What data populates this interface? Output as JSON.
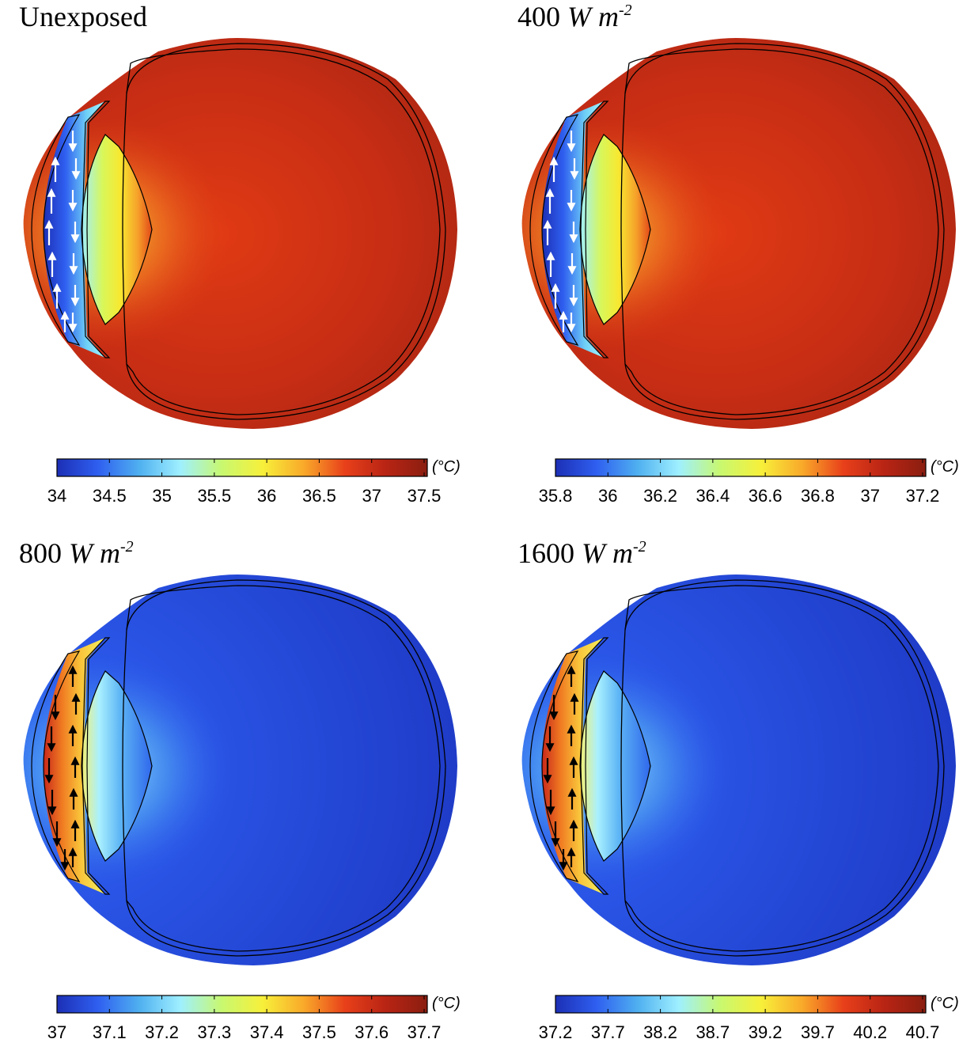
{
  "colors": {
    "scale": [
      "#1c2fb5",
      "#2f5ff0",
      "#4fb0f0",
      "#9ff0ff",
      "#c8f870",
      "#f7f03a",
      "#f9a92a",
      "#e8401a",
      "#b82414",
      "#8a1e10"
    ]
  },
  "panels": [
    {
      "title": "Unexposed",
      "unit_symbol": "",
      "unit_exponent": "",
      "hot_spot": "posterior",
      "flow_arrows": "white",
      "colorbar": {
        "unit": "(°C)",
        "ticks": [
          "34",
          "34.5",
          "35",
          "35.5",
          "36",
          "36.5",
          "37",
          "37.5"
        ]
      }
    },
    {
      "title": "400",
      "unit_symbol": "W m",
      "unit_exponent": "-2",
      "hot_spot": "posterior",
      "flow_arrows": "white",
      "colorbar": {
        "unit": "(°C)",
        "ticks": [
          "35.8",
          "36",
          "36.2",
          "36.4",
          "36.6",
          "36.8",
          "37",
          "37.2"
        ]
      }
    },
    {
      "title": "800",
      "unit_symbol": "W m",
      "unit_exponent": "-2",
      "hot_spot": "anterior",
      "flow_arrows": "black",
      "colorbar": {
        "unit": "(°C)",
        "ticks": [
          "37",
          "37.1",
          "37.2",
          "37.3",
          "37.4",
          "37.5",
          "37.6",
          "37.7"
        ]
      }
    },
    {
      "title": "1600",
      "unit_symbol": "W m",
      "unit_exponent": "-2",
      "hot_spot": "anterior",
      "flow_arrows": "black",
      "colorbar": {
        "unit": "(°C)",
        "ticks": [
          "37.2",
          "37.7",
          "38.2",
          "38.7",
          "39.2",
          "39.7",
          "40.2",
          "40.7"
        ]
      }
    }
  ]
}
